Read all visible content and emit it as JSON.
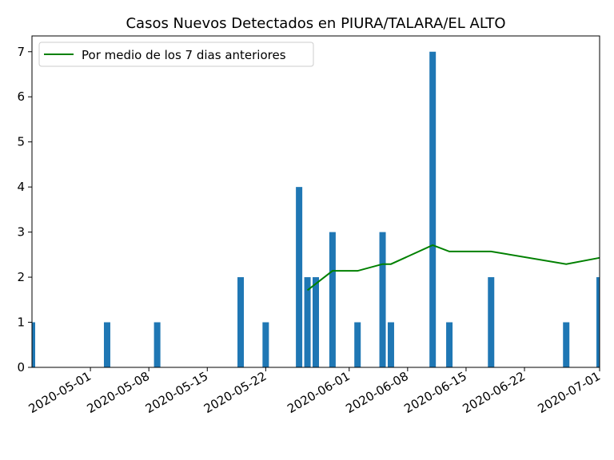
{
  "chart_data": {
    "type": "bar",
    "title": "Casos Nuevos Detectados en PIURA/TALARA/EL ALTO",
    "xlabel": "",
    "ylabel": "",
    "x_axis_type": "date",
    "xlim": [
      "2020-04-24",
      "2020-07-01"
    ],
    "ylim": [
      0,
      7.35
    ],
    "y_ticks": [
      0,
      1,
      2,
      3,
      4,
      5,
      6,
      7
    ],
    "x_ticks": [
      "2020-05-01",
      "2020-05-08",
      "2020-05-15",
      "2020-05-22",
      "2020-06-01",
      "2020-06-08",
      "2020-06-15",
      "2020-06-22",
      "2020-07-01"
    ],
    "grid": false,
    "legend_position": "top-left",
    "bar_color": "#1f77b4",
    "line_color": "#008000",
    "series": [
      {
        "type": "bar",
        "x": [
          "2020-04-24",
          "2020-05-03",
          "2020-05-09",
          "2020-05-19",
          "2020-05-22",
          "2020-05-26",
          "2020-05-27",
          "2020-05-28",
          "2020-05-30",
          "2020-06-02",
          "2020-06-05",
          "2020-06-06",
          "2020-06-11",
          "2020-06-13",
          "2020-06-18",
          "2020-06-27",
          "2020-07-01"
        ],
        "values": [
          1,
          1,
          1,
          2,
          1,
          4,
          2,
          2,
          3,
          1,
          3,
          1,
          7,
          1,
          2,
          1,
          2
        ]
      },
      {
        "type": "line",
        "name": "Por medio de los 7 dias anteriores",
        "x": [
          "2020-05-27",
          "2020-05-30",
          "2020-06-02",
          "2020-06-05",
          "2020-06-06",
          "2020-06-11",
          "2020-06-13",
          "2020-06-18",
          "2020-06-27",
          "2020-07-01"
        ],
        "values": [
          1.71,
          2.14,
          2.14,
          2.29,
          2.29,
          2.71,
          2.57,
          2.57,
          2.29,
          2.43
        ]
      }
    ]
  }
}
